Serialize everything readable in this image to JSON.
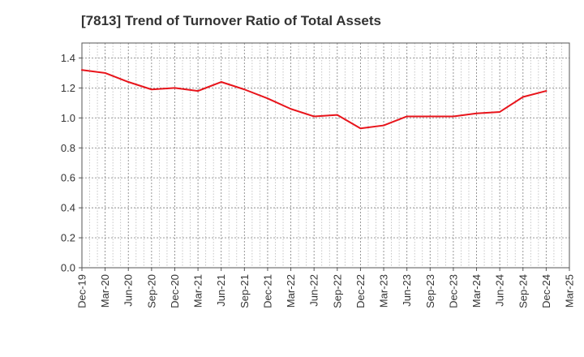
{
  "chart_data": {
    "type": "line",
    "title": "[7813]  Trend of Turnover Ratio of Total Assets",
    "xlabel": "",
    "ylabel": "",
    "x_ticks": [
      "Dec-19",
      "Mar-20",
      "Jun-20",
      "Sep-20",
      "Dec-20",
      "Mar-21",
      "Jun-21",
      "Sep-21",
      "Dec-21",
      "Mar-22",
      "Jun-22",
      "Sep-22",
      "Dec-22",
      "Mar-23",
      "Jun-23",
      "Sep-23",
      "Dec-23",
      "Mar-24",
      "Jun-24",
      "Sep-24",
      "Dec-24",
      "Mar-25"
    ],
    "y_ticks": [
      "0.0",
      "0.2",
      "0.4",
      "0.6",
      "0.8",
      "1.0",
      "1.2",
      "1.4"
    ],
    "ylim": [
      0,
      1.5
    ],
    "grid": true,
    "legend": "none",
    "series": [
      {
        "color": "#e8141b",
        "x": [
          "Dec-19",
          "Mar-20",
          "Jun-20",
          "Sep-20",
          "Dec-20",
          "Mar-21",
          "Jun-21",
          "Sep-21",
          "Dec-21",
          "Mar-22",
          "Jun-22",
          "Sep-22",
          "Dec-22",
          "Mar-23",
          "Jun-23",
          "Sep-23",
          "Dec-23",
          "Mar-24",
          "Jun-24",
          "Sep-24",
          "Dec-24"
        ],
        "values": [
          1.32,
          1.3,
          1.24,
          1.19,
          1.2,
          1.18,
          1.24,
          1.19,
          1.13,
          1.06,
          1.01,
          1.02,
          0.93,
          0.95,
          1.01,
          1.01,
          1.01,
          1.03,
          1.04,
          1.14,
          1.18
        ]
      }
    ]
  }
}
